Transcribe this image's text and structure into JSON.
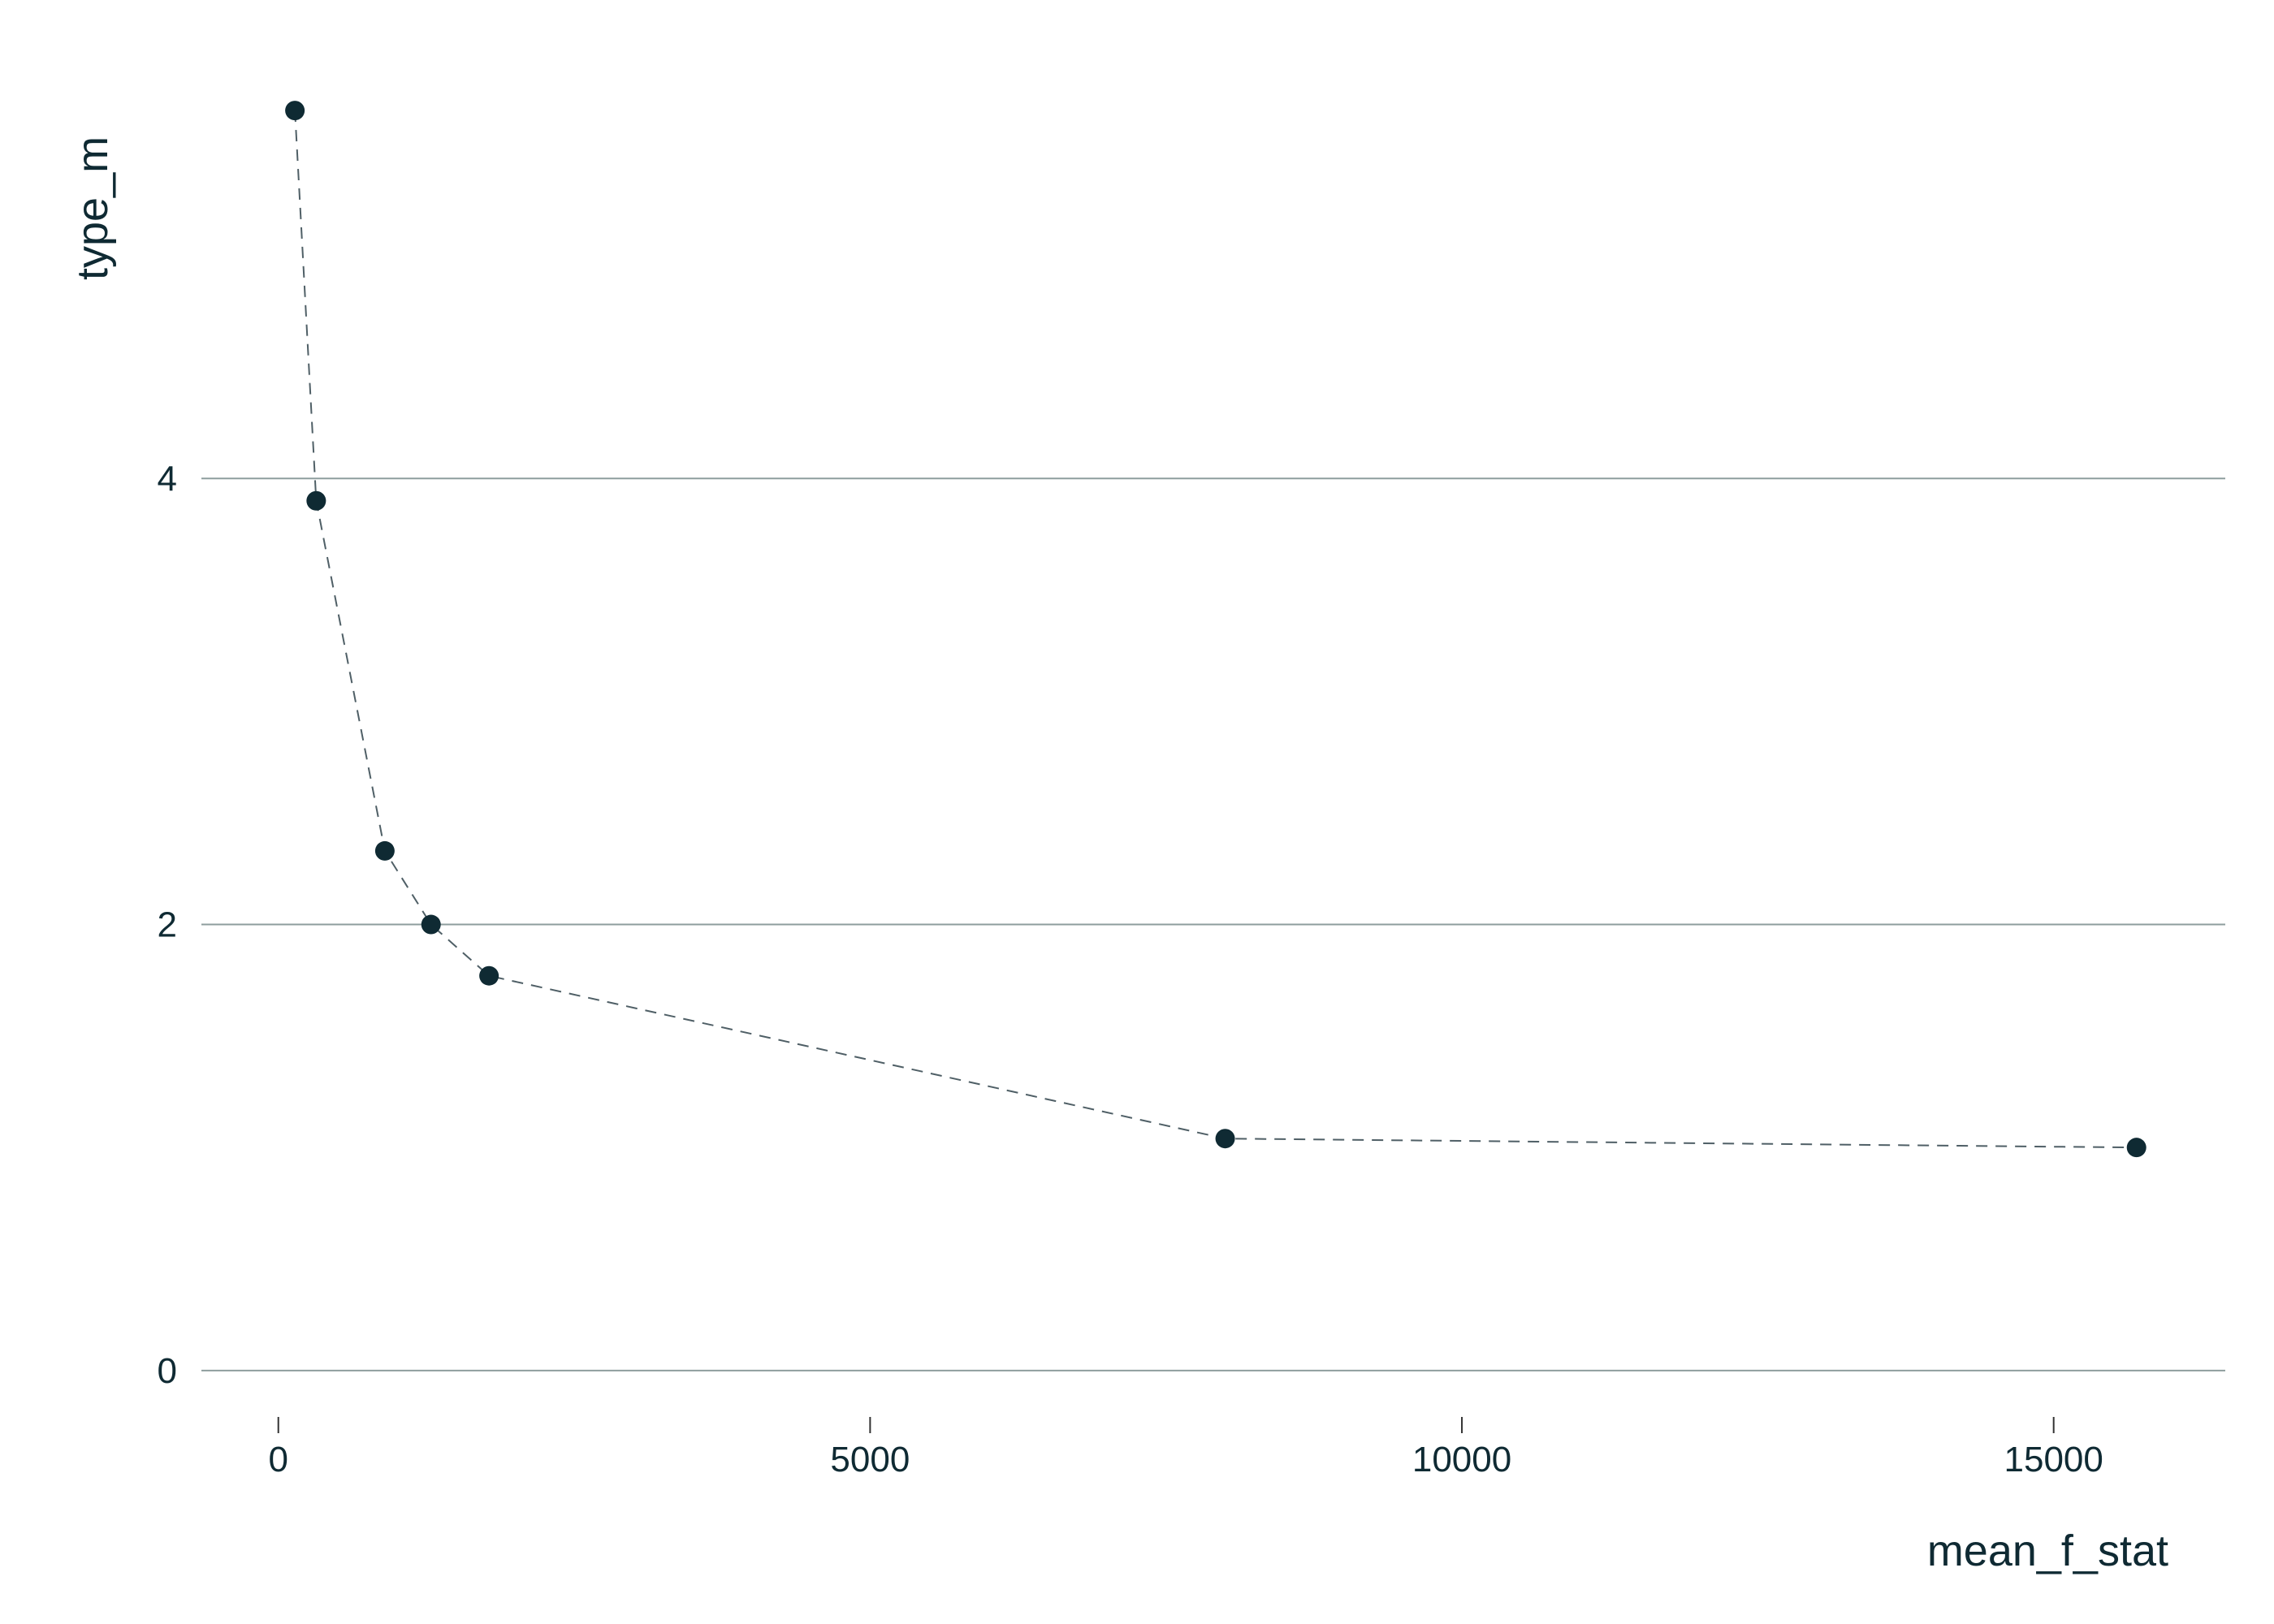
{
  "chart_data": {
    "type": "scatter",
    "xlabel": "mean_f_stat",
    "ylabel": "type_m",
    "xlim": [
      -650,
      16450
    ],
    "ylim": [
      -0.19,
      6.0
    ],
    "x_ticks": [
      0,
      5000,
      10000,
      15000
    ],
    "y_ticks": [
      0,
      2,
      4
    ],
    "grid": "horizontal major lines only",
    "connector": "dashed line through points",
    "series": [
      {
        "points": [
          {
            "x": 140,
            "y": 5.65
          },
          {
            "x": 320,
            "y": 3.9
          },
          {
            "x": 900,
            "y": 2.33
          },
          {
            "x": 1290,
            "y": 2.0
          },
          {
            "x": 1780,
            "y": 1.77
          },
          {
            "x": 8000,
            "y": 1.04
          },
          {
            "x": 15700,
            "y": 1.0
          }
        ]
      }
    ]
  },
  "colors": {
    "point": "#0f2a33",
    "line": "#4f5f66",
    "grid": "#8e9e9e",
    "text": "#0f2a33"
  }
}
